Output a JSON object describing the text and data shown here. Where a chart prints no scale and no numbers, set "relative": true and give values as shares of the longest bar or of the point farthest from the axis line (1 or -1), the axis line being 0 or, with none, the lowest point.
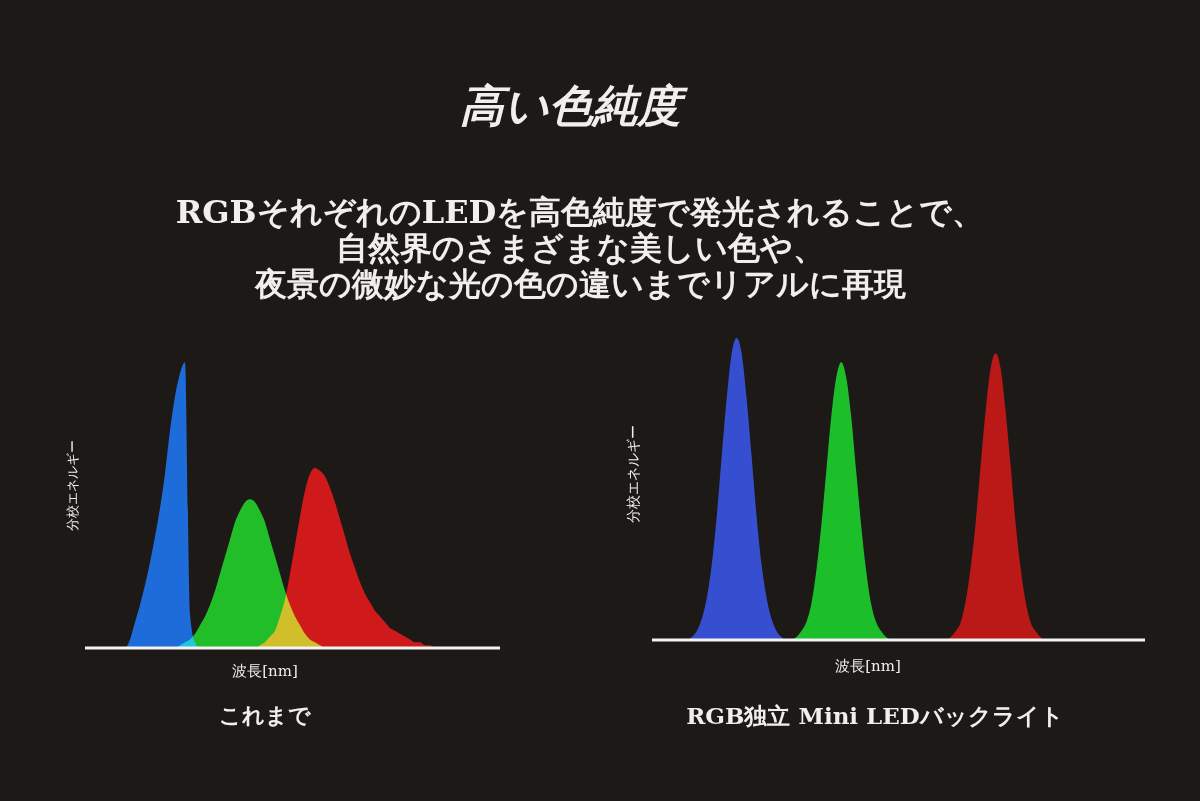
{
  "chart_data": [
    {
      "type": "other",
      "title": "高い色純度",
      "annotations": [
        "RGBそれぞれのLEDを高色純度で発光されることで、",
        "自然界のさまざまな美しい色や、",
        "夜景の微妙な光の色の違いまでリアルに再現"
      ]
    },
    {
      "type": "area",
      "title": "これまで",
      "xlabel": "波長[nm]",
      "ylabel": "分校エネルギー",
      "relative": true,
      "tick_labels": false,
      "categories": [
        null,
        null,
        null,
        null,
        null,
        null,
        null,
        null,
        null,
        null,
        null,
        null,
        null,
        null,
        null,
        null,
        null,
        null,
        null,
        null,
        null,
        null,
        null,
        null,
        null,
        null,
        null,
        null,
        null,
        null,
        null,
        null,
        null,
        null,
        null,
        null,
        null,
        null,
        null,
        null,
        null,
        null,
        null,
        null,
        null,
        null,
        null,
        null,
        null,
        null,
        null,
        null,
        null,
        null,
        null,
        null,
        null,
        null,
        null,
        null,
        null,
        null,
        null,
        null,
        null,
        null,
        null,
        null,
        null,
        null,
        null,
        null,
        null,
        null,
        null,
        null,
        null,
        null,
        null,
        null,
        null,
        null,
        null,
        null
      ],
      "series": [
        {
          "color": "#1f74f0",
          "values": [
            0,
            0,
            0,
            0,
            0,
            0,
            0,
            0,
            0,
            0.03,
            0.09,
            0.15,
            0.22,
            0.3,
            0.39,
            0.49,
            0.61,
            0.76,
            0.88,
            0.96,
            1,
            0.12,
            0.02,
            0,
            0,
            0,
            0,
            0,
            0,
            0,
            0,
            0,
            0,
            0,
            0,
            0,
            0,
            0,
            0,
            0,
            0,
            0,
            0,
            0,
            0,
            0,
            0,
            0,
            0,
            0,
            0,
            0,
            0,
            0,
            0,
            0,
            0,
            0,
            0,
            0,
            0,
            0,
            0,
            0,
            0,
            0,
            0,
            0,
            0,
            0,
            0,
            0,
            0,
            0,
            0,
            0,
            0,
            0,
            0,
            0,
            0,
            0,
            0,
            0
          ]
        },
        {
          "color": "#24d02c",
          "values": [
            0,
            0,
            0,
            0,
            0,
            0,
            0,
            0,
            0,
            0,
            0,
            0,
            0,
            0,
            0,
            0,
            0,
            0,
            0,
            0.01,
            0.02,
            0.03,
            0.05,
            0.08,
            0.11,
            0.15,
            0.2,
            0.26,
            0.32,
            0.38,
            0.44,
            0.48,
            0.51,
            0.52,
            0.51,
            0.48,
            0.44,
            0.38,
            0.32,
            0.26,
            0.2,
            0.15,
            0.11,
            0.08,
            0.05,
            0.03,
            0.02,
            0.01,
            0,
            0,
            0,
            0,
            0,
            0,
            0,
            0,
            0,
            0,
            0,
            0,
            0,
            0,
            0,
            0,
            0,
            0,
            0,
            0,
            0,
            0,
            0,
            0,
            0,
            0,
            0,
            0,
            0,
            0,
            0,
            0,
            0,
            0,
            0,
            0
          ]
        },
        {
          "color": "#e3191c",
          "values": [
            0,
            0,
            0,
            0,
            0,
            0,
            0,
            0,
            0,
            0,
            0,
            0,
            0,
            0,
            0,
            0,
            0,
            0,
            0,
            0,
            0,
            0,
            0,
            0,
            0,
            0,
            0,
            0,
            0,
            0,
            0,
            0,
            0,
            0,
            0,
            0.01,
            0.02,
            0.04,
            0.06,
            0.11,
            0.17,
            0.26,
            0.36,
            0.46,
            0.55,
            0.61,
            0.63,
            0.62,
            0.6,
            0.56,
            0.51,
            0.45,
            0.39,
            0.33,
            0.28,
            0.23,
            0.19,
            0.16,
            0.13,
            0.11,
            0.09,
            0.07,
            0.06,
            0.05,
            0.04,
            0.03,
            0.02,
            0.02,
            0.01,
            0.01,
            0,
            0,
            0,
            0,
            0,
            0,
            0,
            0,
            0,
            0,
            0,
            0,
            0,
            0
          ]
        }
      ]
    },
    {
      "type": "area",
      "title": "RGB独立 Mini LEDバックライト",
      "xlabel": "波長[nm]",
      "ylabel": "分校エネルギー",
      "relative": true,
      "tick_labels": false,
      "categories": [
        null,
        null,
        null,
        null,
        null,
        null,
        null,
        null,
        null,
        null,
        null,
        null,
        null,
        null,
        null,
        null,
        null,
        null,
        null,
        null,
        null,
        null,
        null,
        null,
        null,
        null,
        null,
        null,
        null,
        null,
        null,
        null,
        null,
        null,
        null,
        null,
        null,
        null,
        null,
        null,
        null,
        null,
        null,
        null,
        null,
        null,
        null,
        null,
        null,
        null,
        null,
        null,
        null,
        null,
        null,
        null,
        null,
        null,
        null,
        null,
        null,
        null,
        null,
        null,
        null,
        null,
        null,
        null,
        null,
        null,
        null,
        null,
        null,
        null,
        null,
        null,
        null,
        null,
        null,
        null,
        null,
        null,
        null,
        null,
        null,
        null,
        null,
        null,
        null,
        null,
        null,
        null,
        null,
        null,
        null,
        null,
        null,
        null,
        null,
        null
      ],
      "series": [
        {
          "color": "#3a55e6",
          "values": [
            0,
            0,
            0,
            0,
            0,
            0,
            0,
            0,
            0.01,
            0.03,
            0.07,
            0.14,
            0.25,
            0.41,
            0.61,
            0.8,
            0.95,
            1,
            0.95,
            0.8,
            0.61,
            0.41,
            0.25,
            0.14,
            0.07,
            0.03,
            0.01,
            0,
            0,
            0,
            0,
            0,
            0,
            0,
            0,
            0,
            0,
            0,
            0,
            0,
            0,
            0,
            0,
            0,
            0,
            0,
            0,
            0,
            0,
            0,
            0,
            0,
            0,
            0,
            0,
            0,
            0,
            0,
            0,
            0,
            0,
            0,
            0,
            0,
            0,
            0,
            0,
            0,
            0,
            0,
            0,
            0,
            0,
            0,
            0,
            0,
            0,
            0,
            0,
            0,
            0,
            0,
            0,
            0,
            0,
            0,
            0,
            0,
            0,
            0,
            0,
            0,
            0,
            0,
            0,
            0,
            0,
            0,
            0,
            0
          ]
        },
        {
          "color": "#14d12c",
          "values": [
            0,
            0,
            0,
            0,
            0,
            0,
            0,
            0,
            0,
            0,
            0,
            0,
            0,
            0,
            0,
            0,
            0,
            0,
            0,
            0,
            0,
            0,
            0,
            0,
            0,
            0,
            0,
            0,
            0,
            0.01,
            0.03,
            0.06,
            0.12,
            0.23,
            0.38,
            0.56,
            0.74,
            0.87,
            0.92,
            0.87,
            0.74,
            0.56,
            0.38,
            0.23,
            0.12,
            0.06,
            0.03,
            0.01,
            0,
            0,
            0,
            0,
            0,
            0,
            0,
            0,
            0,
            0,
            0,
            0,
            0,
            0,
            0,
            0,
            0,
            0,
            0,
            0,
            0,
            0,
            0,
            0,
            0,
            0,
            0,
            0,
            0,
            0,
            0,
            0,
            0,
            0,
            0,
            0,
            0,
            0,
            0,
            0,
            0,
            0,
            0,
            0,
            0,
            0,
            0,
            0,
            0,
            0,
            0,
            0
          ]
        },
        {
          "color": "#cc1515",
          "values": [
            0,
            0,
            0,
            0,
            0,
            0,
            0,
            0,
            0,
            0,
            0,
            0,
            0,
            0,
            0,
            0,
            0,
            0,
            0,
            0,
            0,
            0,
            0,
            0,
            0,
            0,
            0,
            0,
            0,
            0,
            0,
            0,
            0,
            0,
            0,
            0,
            0,
            0,
            0,
            0,
            0,
            0,
            0,
            0,
            0,
            0,
            0,
            0,
            0,
            0,
            0,
            0,
            0,
            0,
            0,
            0,
            0,
            0,
            0,
            0,
            0.01,
            0.03,
            0.06,
            0.13,
            0.24,
            0.39,
            0.58,
            0.76,
            0.9,
            0.95,
            0.9,
            0.76,
            0.58,
            0.39,
            0.24,
            0.13,
            0.06,
            0.03,
            0.01,
            0,
            0,
            0,
            0,
            0,
            0,
            0,
            0,
            0,
            0,
            0,
            0,
            0,
            0,
            0,
            0,
            0,
            0,
            0,
            0,
            0
          ]
        }
      ]
    }
  ]
}
